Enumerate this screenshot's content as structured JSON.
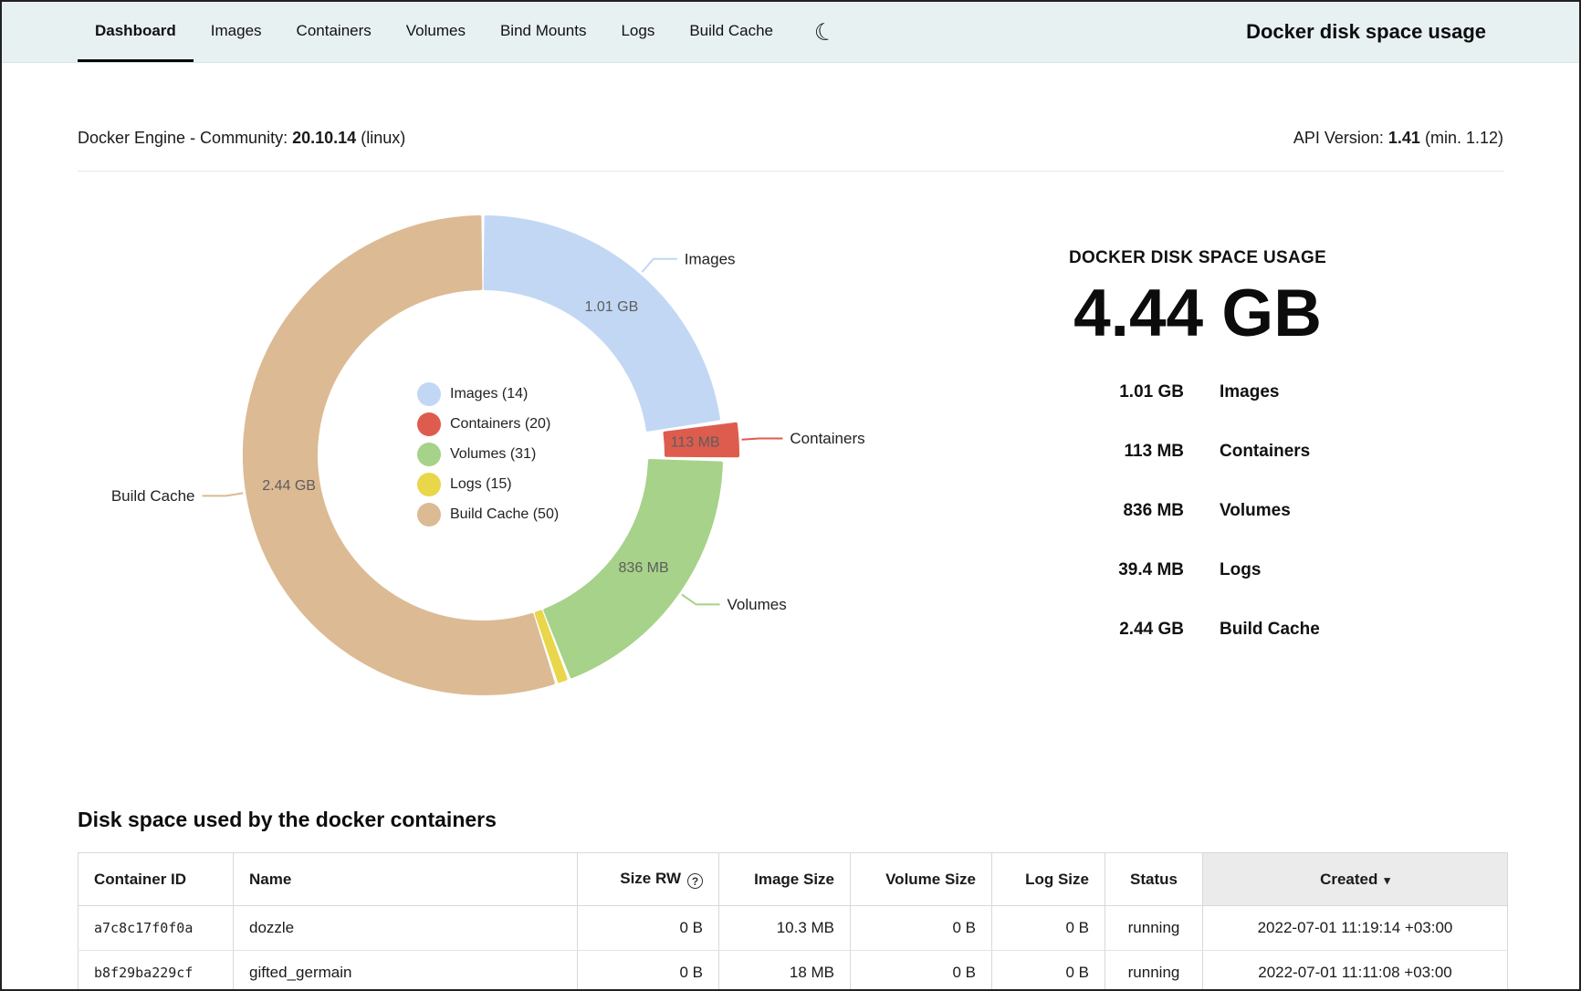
{
  "nav": {
    "tabs": [
      {
        "label": "Dashboard",
        "active": true
      },
      {
        "label": "Images",
        "active": false
      },
      {
        "label": "Containers",
        "active": false
      },
      {
        "label": "Volumes",
        "active": false
      },
      {
        "label": "Bind Mounts",
        "active": false
      },
      {
        "label": "Logs",
        "active": false
      },
      {
        "label": "Build Cache",
        "active": false
      }
    ],
    "theme_toggle_icon": "moon-icon",
    "app_title": "Docker disk space usage"
  },
  "engine": {
    "label": "Docker Engine - Community:",
    "version": "20.10.14",
    "platform": "(linux)",
    "api_label": "API Version:",
    "api_version": "1.41",
    "api_min": "(min. 1.12)"
  },
  "chart_data": {
    "type": "pie",
    "donut": true,
    "title": "Docker disk space usage by category",
    "legend_position": "center",
    "total_gb": 4.44,
    "segments": [
      {
        "name": "Images",
        "count": 14,
        "value_gb": 1.01,
        "value_label": "1.01 GB",
        "color": "#c2d7f4",
        "exploded": false,
        "outer_label": true
      },
      {
        "name": "Containers",
        "count": 20,
        "value_gb": 0.113,
        "value_label": "113 MB",
        "color": "#de5c4e",
        "exploded": true,
        "outer_label": true
      },
      {
        "name": "Volumes",
        "count": 31,
        "value_gb": 0.836,
        "value_label": "836 MB",
        "color": "#a6d289",
        "exploded": false,
        "outer_label": true
      },
      {
        "name": "Logs",
        "count": 15,
        "value_gb": 0.0394,
        "value_label": "39.4 MB",
        "color": "#e9d64b",
        "exploded": false,
        "outer_label": false
      },
      {
        "name": "Build Cache",
        "count": 50,
        "value_gb": 2.44,
        "value_label": "2.44 GB",
        "color": "#dcba94",
        "exploded": false,
        "outer_label": true
      }
    ]
  },
  "summary": {
    "heading": "DOCKER DISK SPACE USAGE",
    "total": "4.44 GB",
    "rows": [
      {
        "value": "1.01 GB",
        "label": "Images"
      },
      {
        "value": "113 MB",
        "label": "Containers"
      },
      {
        "value": "836 MB",
        "label": "Volumes"
      },
      {
        "value": "39.4 MB",
        "label": "Logs"
      },
      {
        "value": "2.44 GB",
        "label": "Build Cache"
      }
    ]
  },
  "containers_table": {
    "heading": "Disk space used by the docker containers",
    "columns": [
      {
        "label": "Container ID",
        "align": "left",
        "info_icon": false,
        "sorted": false
      },
      {
        "label": "Name",
        "align": "left",
        "info_icon": false,
        "sorted": false
      },
      {
        "label": "Size RW",
        "align": "right",
        "info_icon": true,
        "sorted": false
      },
      {
        "label": "Image Size",
        "align": "right",
        "info_icon": false,
        "sorted": false
      },
      {
        "label": "Volume Size",
        "align": "right",
        "info_icon": false,
        "sorted": false
      },
      {
        "label": "Log Size",
        "align": "right",
        "info_icon": false,
        "sorted": false
      },
      {
        "label": "Status",
        "align": "center",
        "info_icon": false,
        "sorted": false
      },
      {
        "label": "Created",
        "align": "center",
        "info_icon": false,
        "sorted": "desc"
      }
    ],
    "rows": [
      [
        "a7c8c17f0f0a",
        "dozzle",
        "0 B",
        "10.3 MB",
        "0 B",
        "0 B",
        "running",
        "2022-07-01 11:19:14 +03:00"
      ],
      [
        "b8f29ba229cf",
        "gifted_germain",
        "0 B",
        "18 MB",
        "0 B",
        "0 B",
        "running",
        "2022-07-01 11:11:08 +03:00"
      ]
    ]
  }
}
